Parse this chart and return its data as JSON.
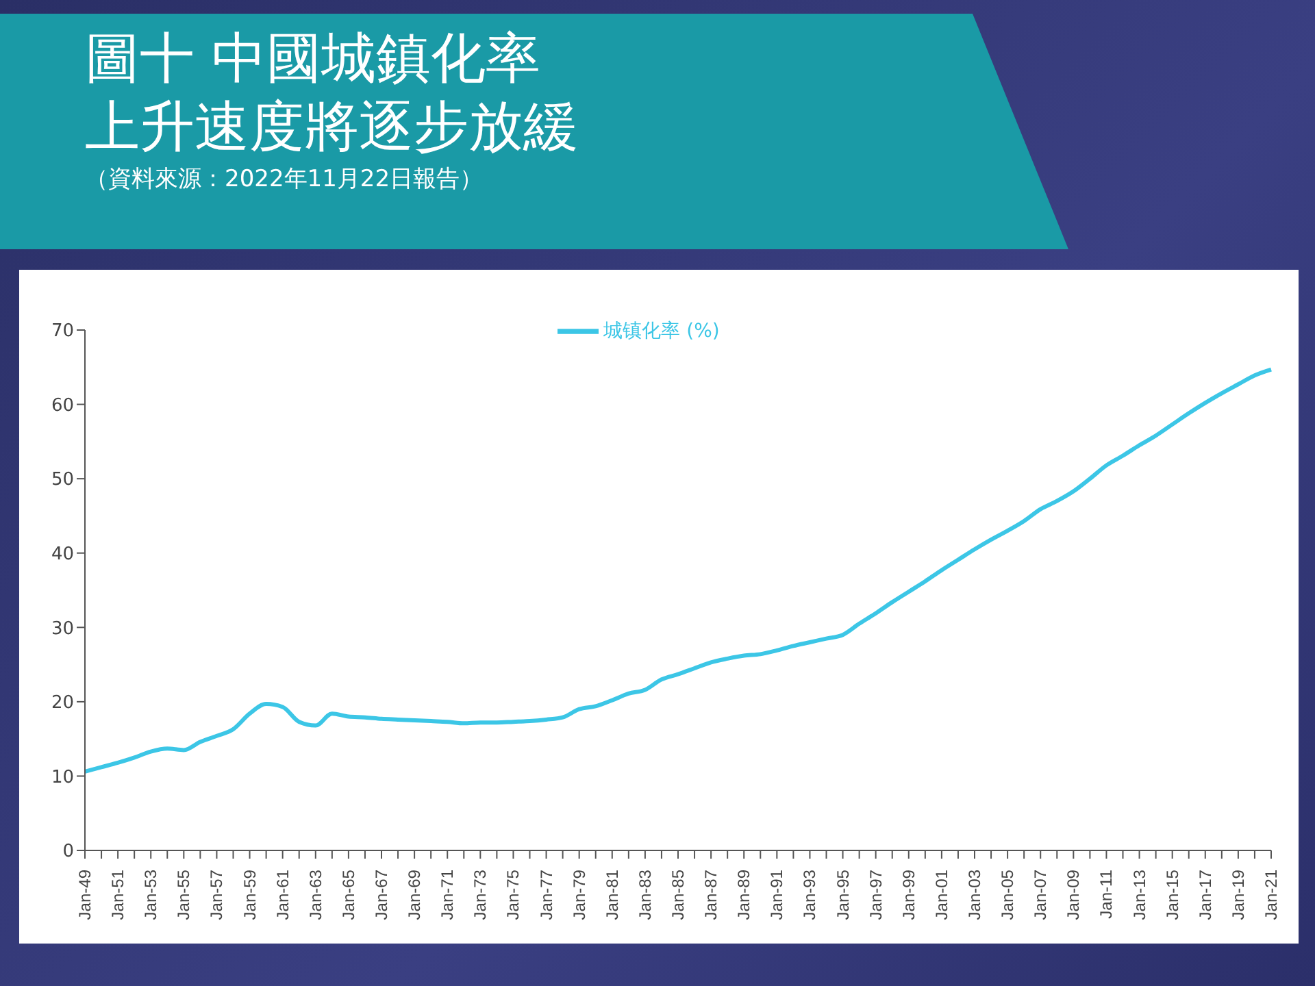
{
  "chart_data": {
    "type": "line",
    "title": "圖十 中國城鎮化率",
    "subtitle": "上升速度將逐步放緩",
    "annotations": [
      "（資料來源：2022年11月22日報告）"
    ],
    "categories": [
      "Jan-49",
      null,
      "Jan-51",
      null,
      "Jan-53",
      null,
      "Jan-55",
      null,
      "Jan-57",
      null,
      "Jan-59",
      null,
      "Jan-61",
      null,
      "Jan-63",
      null,
      "Jan-65",
      null,
      "Jan-67",
      null,
      "Jan-69",
      null,
      "Jan-71",
      null,
      "Jan-73",
      null,
      "Jan-75",
      null,
      "Jan-77",
      null,
      "Jan-79",
      null,
      "Jan-81",
      null,
      "Jan-83",
      null,
      "Jan-85",
      null,
      "Jan-87",
      null,
      "Jan-89",
      null,
      "Jan-91",
      null,
      "Jan-93",
      null,
      "Jan-95",
      null,
      "Jan-97",
      null,
      "Jan-99",
      null,
      "Jan-01",
      null,
      "Jan-03",
      null,
      "Jan-05",
      null,
      "Jan-07",
      null,
      "Jan-09",
      null,
      "Jan-11",
      null,
      "Jan-13",
      null,
      "Jan-15",
      null,
      "Jan-17",
      null,
      "Jan-19",
      null,
      "Jan-21"
    ],
    "series": [
      {
        "name": "城镇化率 (%)",
        "color": "#3cc6e6",
        "values": [
          10.6,
          11.2,
          11.8,
          12.5,
          13.3,
          13.7,
          13.5,
          14.6,
          15.4,
          16.3,
          18.4,
          19.7,
          19.3,
          17.3,
          16.8,
          18.4,
          18.0,
          17.9,
          17.7,
          17.6,
          17.5,
          17.4,
          17.3,
          17.1,
          17.2,
          17.2,
          17.3,
          17.4,
          17.6,
          17.9,
          19.0,
          19.4,
          20.2,
          21.1,
          21.6,
          23.0,
          23.7,
          24.5,
          25.3,
          25.8,
          26.2,
          26.4,
          26.9,
          27.5,
          28.0,
          28.5,
          29.0,
          30.5,
          31.9,
          33.4,
          34.8,
          36.2,
          37.7,
          39.1,
          40.5,
          41.8,
          43.0,
          44.3,
          45.9,
          47.0,
          48.3,
          50.0,
          51.8,
          53.1,
          54.5,
          55.8,
          57.3,
          58.8,
          60.2,
          61.5,
          62.7,
          63.9,
          64.7
        ]
      }
    ],
    "ylim": [
      0,
      70
    ],
    "yticks": [
      0,
      10,
      20,
      30,
      40,
      50,
      60,
      70
    ],
    "grid": false,
    "legend": "top",
    "marker": "none",
    "line_style": "solid"
  }
}
